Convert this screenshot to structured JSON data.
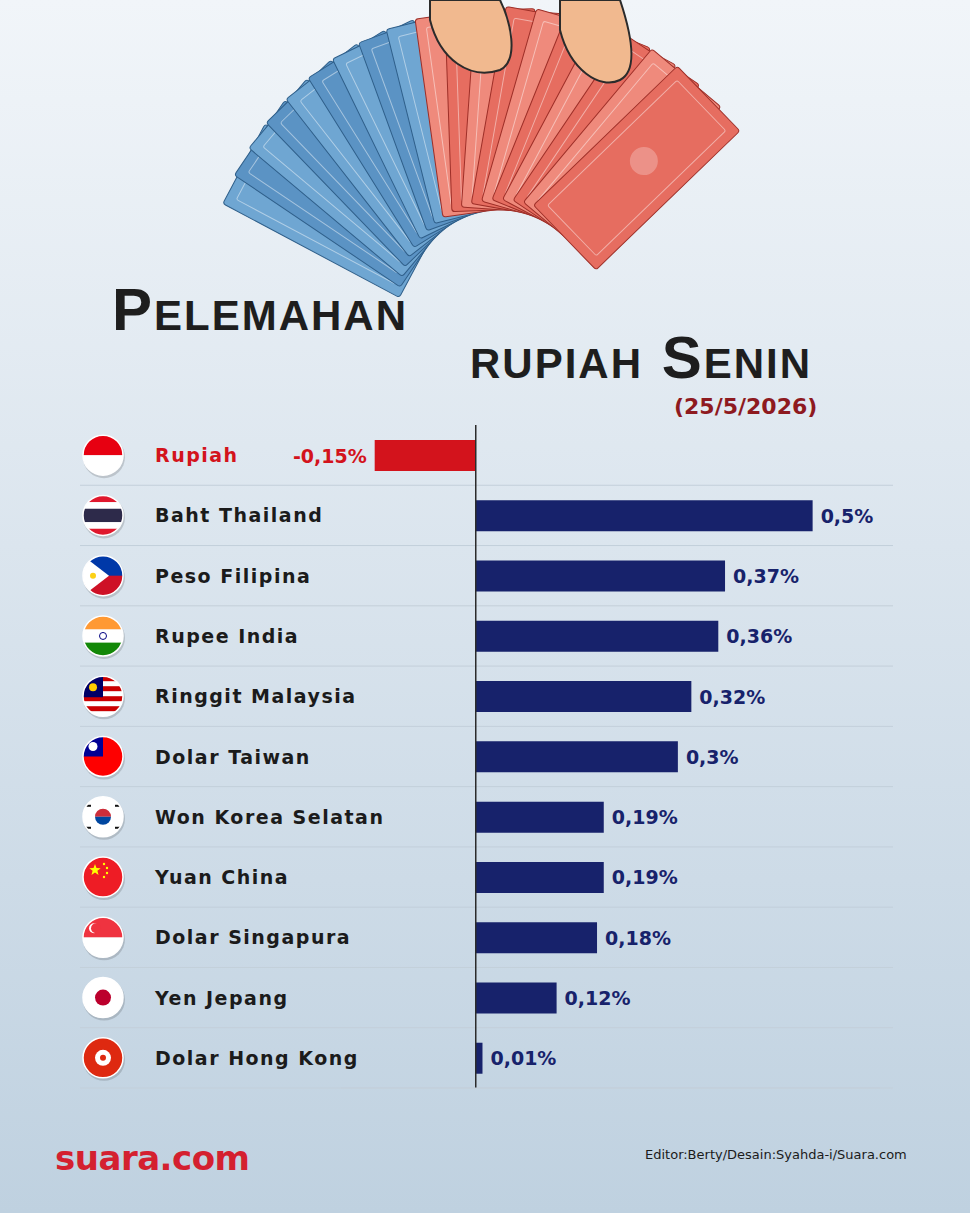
{
  "chart_data": {
    "type": "bar",
    "title": "Pelemahan rupiah Senin",
    "subtitle": "(25/5/2026)",
    "orientation": "horizontal",
    "categories": [
      "Rupiah",
      "Baht Thailand",
      "Peso Filipina",
      "Rupee India",
      "Ringgit Malaysia",
      "Dolar Taiwan",
      "Won Korea Selatan",
      "Yuan China",
      "Dolar Singapura",
      "Yen Jepang",
      "Dolar Hong Kong"
    ],
    "values": [
      -0.15,
      0.5,
      0.37,
      0.36,
      0.32,
      0.3,
      0.19,
      0.19,
      0.18,
      0.12,
      0.01
    ],
    "value_labels": [
      "-0,15%",
      "0,5%",
      "0,37%",
      "0,36%",
      "0,32%",
      "0,3%",
      "0,19%",
      "0,19%",
      "0,18%",
      "0,12%",
      "0,01%"
    ],
    "colors": [
      "#d3131c",
      "#17226b",
      "#17226b",
      "#17226b",
      "#17226b",
      "#17226b",
      "#17226b",
      "#17226b",
      "#17226b",
      "#17226b",
      "#17226b"
    ],
    "data_labels": true,
    "tick_labels": "y",
    "xlim": [
      -0.2,
      0.6
    ],
    "annotations": [
      "suara.com",
      "Editor:Berty/Desain:Syahda-i/Suara.com"
    ]
  }
}
